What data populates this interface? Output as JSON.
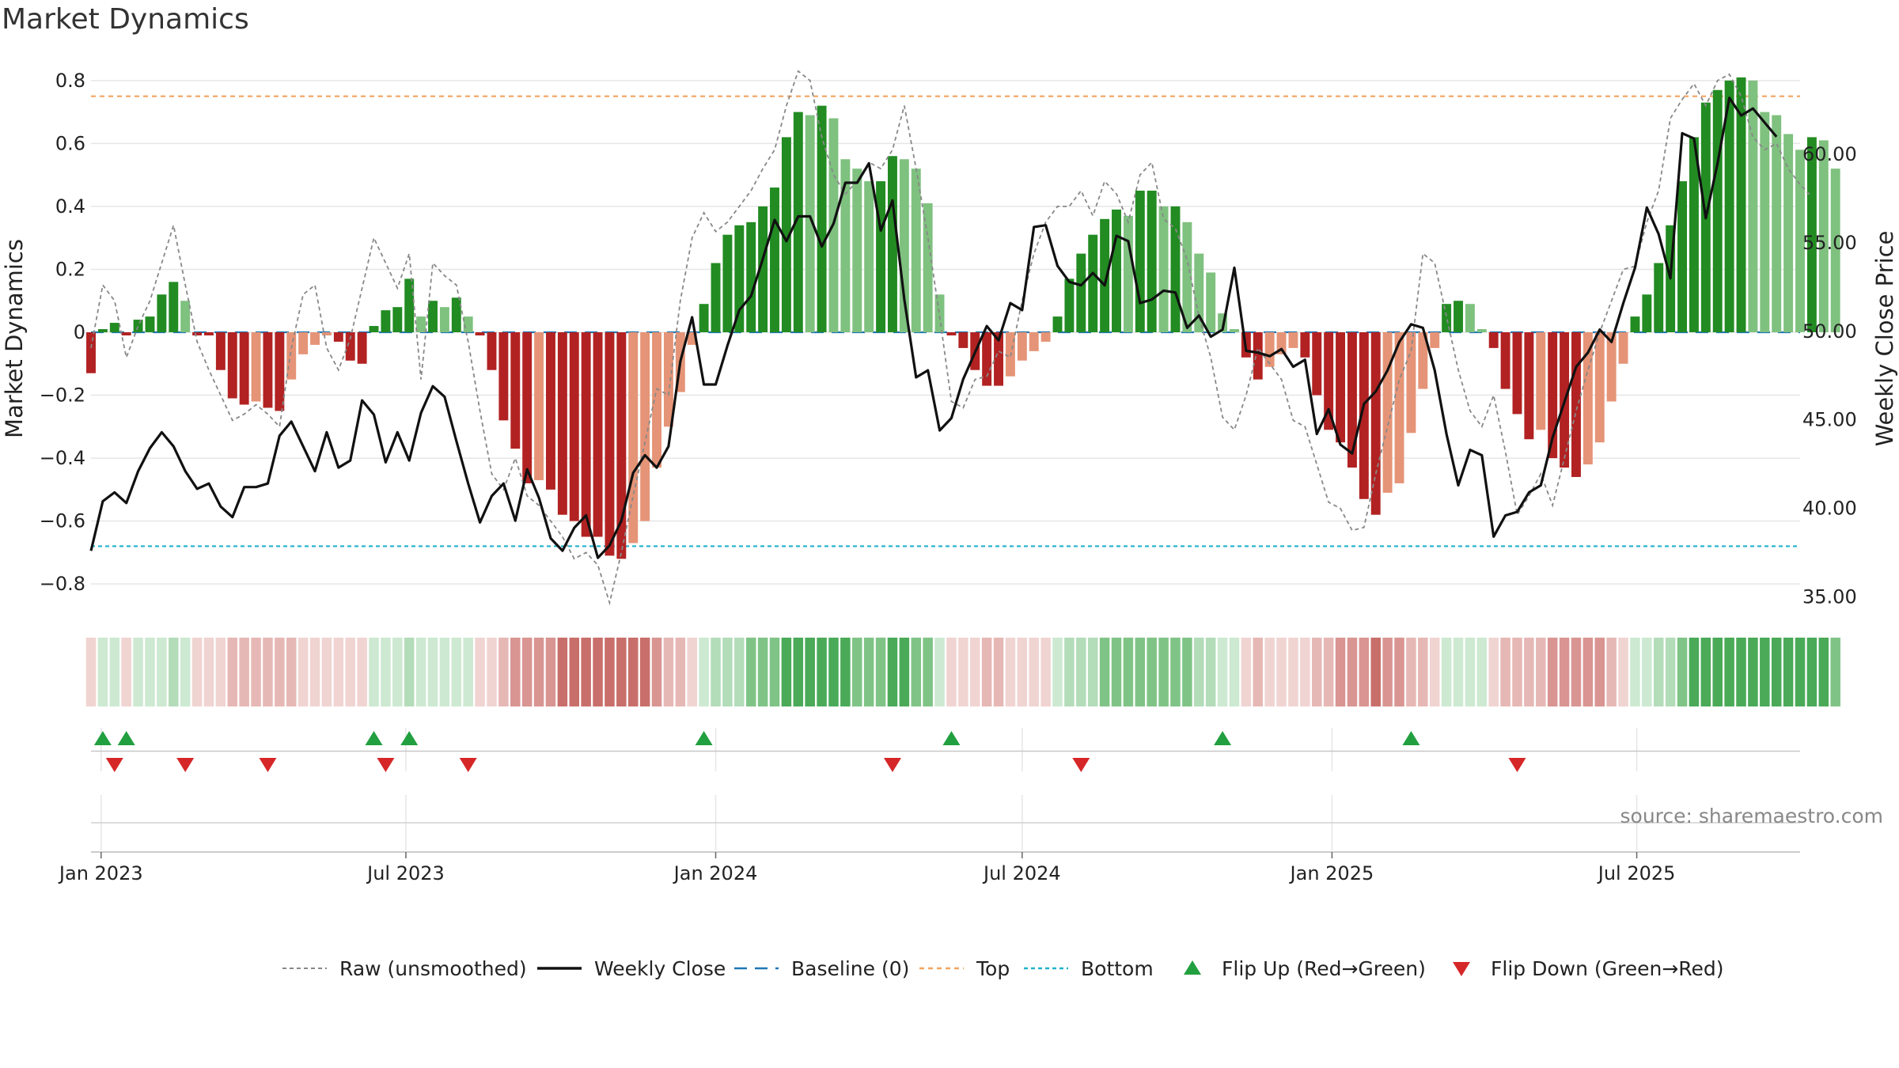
{
  "chart_data": {
    "type": "bar",
    "title": "Market Dynamics",
    "ylabel_left": "Market Dynamics",
    "ylabel_right": "Weekly Close Price",
    "ylim_left": [
      -0.88,
      0.88
    ],
    "ylim_right": [
      34.3,
      65.6
    ],
    "yticks_left": [
      "−0.8",
      "−0.6",
      "−0.4",
      "−0.2",
      "0",
      "0.2",
      "0.4",
      "0.6",
      "0.8"
    ],
    "yticks_right": [
      "35.00",
      "40.00",
      "45.00",
      "50.00",
      "55.00",
      "60.00"
    ],
    "xlim": [
      "2022-12-26",
      "2025-10-06"
    ],
    "xticks": [
      {
        "date": "2023-01-01",
        "label": "Jan 2023"
      },
      {
        "date": "2023-07-01",
        "label": "Jul 2023"
      },
      {
        "date": "2024-01-01",
        "label": "Jan 2024"
      },
      {
        "date": "2024-07-01",
        "label": "Jul 2024"
      },
      {
        "date": "2025-01-01",
        "label": "Jan 2025"
      },
      {
        "date": "2025-07-01",
        "label": "Jul 2025"
      }
    ],
    "start_date": "2022-12-26",
    "top_threshold": 0.75,
    "bottom_threshold": -0.68,
    "baseline": 0,
    "grid": true,
    "legend_position": "bottom",
    "momentum": [
      -0.13,
      0.01,
      0.03,
      -0.01,
      0.04,
      0.05,
      0.12,
      0.16,
      0.1,
      -0.01,
      -0.01,
      -0.12,
      -0.21,
      -0.23,
      -0.22,
      -0.24,
      -0.25,
      -0.15,
      -0.07,
      -0.04,
      -0.01,
      -0.03,
      -0.09,
      -0.1,
      0.02,
      0.07,
      0.08,
      0.17,
      0.05,
      0.1,
      0.08,
      0.11,
      0.05,
      -0.01,
      -0.12,
      -0.28,
      -0.37,
      -0.48,
      -0.47,
      -0.5,
      -0.58,
      -0.6,
      -0.65,
      -0.65,
      -0.71,
      -0.72,
      -0.67,
      -0.6,
      -0.43,
      -0.3,
      -0.19,
      -0.04,
      0.09,
      0.22,
      0.31,
      0.34,
      0.35,
      0.4,
      0.46,
      0.62,
      0.7,
      0.69,
      0.72,
      0.68,
      0.55,
      0.52,
      0.48,
      0.48,
      0.56,
      0.55,
      0.52,
      0.41,
      0.12,
      -0.01,
      -0.05,
      -0.12,
      -0.17,
      -0.17,
      -0.14,
      -0.09,
      -0.06,
      -0.03,
      0.05,
      0.17,
      0.25,
      0.31,
      0.36,
      0.39,
      0.37,
      0.45,
      0.45,
      0.4,
      0.4,
      0.35,
      0.25,
      0.19,
      0.06,
      0.01,
      -0.08,
      -0.15,
      -0.11,
      -0.07,
      -0.05,
      -0.08,
      -0.2,
      -0.31,
      -0.35,
      -0.43,
      -0.53,
      -0.58,
      -0.51,
      -0.48,
      -0.32,
      -0.18,
      -0.05,
      0.09,
      0.1,
      0.09,
      0.01,
      -0.05,
      -0.18,
      -0.26,
      -0.34,
      -0.31,
      -0.4,
      -0.43,
      -0.46,
      -0.42,
      -0.35,
      -0.22,
      -0.1,
      0.05,
      0.12,
      0.22,
      0.34,
      0.48,
      0.62,
      0.73,
      0.77,
      0.8,
      0.81,
      0.8,
      0.7,
      0.69,
      0.63,
      0.58,
      0.62,
      0.61,
      0.52
    ],
    "raw": [
      -0.05,
      0.15,
      0.1,
      -0.08,
      0.02,
      0.1,
      0.22,
      0.34,
      0.15,
      -0.03,
      -0.12,
      -0.2,
      -0.28,
      -0.26,
      -0.23,
      -0.26,
      -0.3,
      -0.05,
      0.12,
      0.15,
      -0.05,
      -0.12,
      -0.02,
      0.14,
      0.3,
      0.22,
      0.14,
      0.25,
      -0.15,
      0.22,
      0.18,
      0.15,
      -0.03,
      -0.25,
      -0.45,
      -0.5,
      -0.4,
      -0.52,
      -0.55,
      -0.6,
      -0.65,
      -0.72,
      -0.7,
      -0.74,
      -0.86,
      -0.7,
      -0.52,
      -0.35,
      -0.18,
      -0.2,
      0.1,
      0.3,
      0.38,
      0.32,
      0.35,
      0.4,
      0.45,
      0.52,
      0.58,
      0.72,
      0.83,
      0.8,
      0.62,
      0.5,
      0.44,
      0.48,
      0.54,
      0.52,
      0.58,
      0.72,
      0.52,
      0.3,
      0.05,
      -0.22,
      -0.24,
      -0.15,
      -0.14,
      -0.06,
      -0.08,
      0.1,
      0.25,
      0.35,
      0.4,
      0.4,
      0.45,
      0.37,
      0.48,
      0.44,
      0.35,
      0.5,
      0.54,
      0.36,
      0.33,
      0.23,
      0.05,
      -0.08,
      -0.27,
      -0.31,
      -0.2,
      -0.05,
      -0.1,
      -0.15,
      -0.28,
      -0.3,
      -0.42,
      -0.54,
      -0.56,
      -0.63,
      -0.62,
      -0.45,
      -0.3,
      -0.15,
      -0.06,
      0.25,
      0.22,
      0.05,
      -0.12,
      -0.25,
      -0.3,
      -0.2,
      -0.38,
      -0.58,
      -0.52,
      -0.45,
      -0.55,
      -0.4,
      -0.25,
      -0.12,
      0,
      0.1,
      0.2,
      0.21,
      0.35,
      0.45,
      0.68,
      0.74,
      0.79,
      0.72,
      0.8,
      0.82,
      0.75,
      0.62,
      0.58,
      0.6,
      0.52,
      0.47,
      0.43
    ],
    "close": [
      37.6,
      40.4,
      40.9,
      40.3,
      42.1,
      43.4,
      44.3,
      43.5,
      42.1,
      41.1,
      41.4,
      40.1,
      39.5,
      41.2,
      41.2,
      41.4,
      44.1,
      44.9,
      43.5,
      42.1,
      44.3,
      42.3,
      42.7,
      46.1,
      45.3,
      42.6,
      44.3,
      42.7,
      45.4,
      46.9,
      46.3,
      43.8,
      41.4,
      39.2,
      40.7,
      41.4,
      39.3,
      42.2,
      40.6,
      38.3,
      37.6,
      38.9,
      39.6,
      37.2,
      37.9,
      39.3,
      42.0,
      43.0,
      42.3,
      43.5,
      48.3,
      50.8,
      47.0,
      47.0,
      49.2,
      51.2,
      52.0,
      54.1,
      56.3,
      55.1,
      56.5,
      56.5,
      54.8,
      56.1,
      58.4,
      58.4,
      59.5,
      55.7,
      57.4,
      51.8,
      47.4,
      47.8,
      44.4,
      45.1,
      47.3,
      48.8,
      50.3,
      49.5,
      51.6,
      51.2,
      55.9,
      56.0,
      53.7,
      52.8,
      52.6,
      53.3,
      52.6,
      55.4,
      55.1,
      51.6,
      51.8,
      52.3,
      52.2,
      50.2,
      50.9,
      49.7,
      50.1,
      53.6,
      48.9,
      48.8,
      48.6,
      49.0,
      48.0,
      48.4,
      44.2,
      45.6,
      43.6,
      43.1,
      45.9,
      46.6,
      47.8,
      49.4,
      50.4,
      50.2,
      47.8,
      44.2,
      41.3,
      43.3,
      43.0,
      38.4,
      39.6,
      39.8,
      40.9,
      41.3,
      44.0,
      46.0,
      48.0,
      48.8,
      50.1,
      49.4,
      51.6,
      53.6,
      57.0,
      55.5,
      53.0,
      61.2,
      60.9,
      56.4,
      59.5,
      63.2,
      62.2,
      62.6,
      61.8,
      61.0
    ]
  },
  "flips_up_weeks": [
    1,
    3,
    24,
    27,
    52,
    73,
    96,
    112
  ],
  "flips_down_weeks": [
    2,
    8,
    15,
    25,
    32,
    68,
    84,
    121
  ],
  "heat_colors": {
    "red": [
      "#f0d4d2",
      "#e6b8b5",
      "#d99592",
      "#c96f6b"
    ],
    "green": [
      "#cde9d1",
      "#b3dcb9",
      "#7fc486",
      "#4aaa58"
    ]
  },
  "colors": {
    "bar_green_dark": "#228b22",
    "bar_green_light": "#7fc17f",
    "bar_red_dark": "#b22222",
    "bar_red_light": "#e59477",
    "close_line": "#111111",
    "raw_line": "#888888",
    "baseline": "#1f77b4",
    "top": "#f4a460",
    "bottom": "#20b2cc",
    "flip_up": "#22a040",
    "flip_down": "#d62728"
  },
  "legend": [
    {
      "key": "raw",
      "label": "Raw (unsmoothed)"
    },
    {
      "key": "close",
      "label": "Weekly Close"
    },
    {
      "key": "baseline",
      "label": "Baseline (0)"
    },
    {
      "key": "top",
      "label": "Top"
    },
    {
      "key": "bottom",
      "label": "Bottom"
    },
    {
      "key": "flipup",
      "label": "Flip Up (Red→Green)"
    },
    {
      "key": "flipdown",
      "label": "Flip Down (Green→Red)"
    }
  ],
  "source": "source: sharemaestro.com"
}
